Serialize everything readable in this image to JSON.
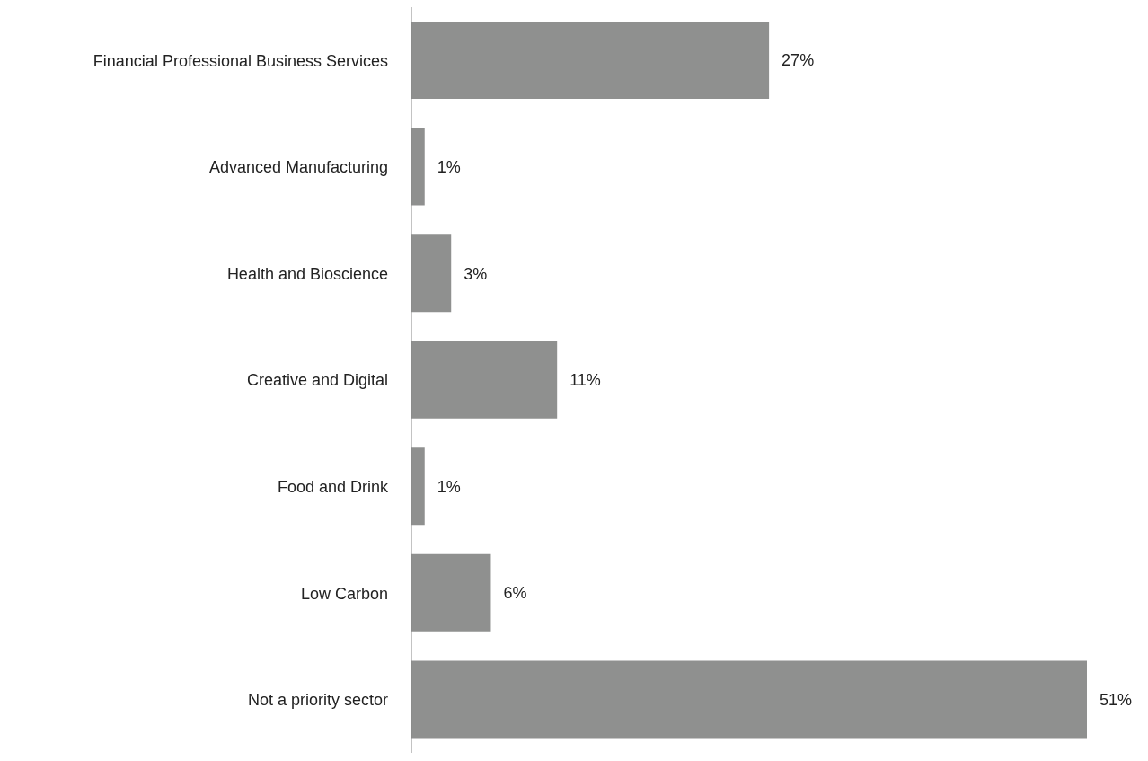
{
  "chart_data": {
    "type": "bar",
    "orientation": "horizontal",
    "categories": [
      "Financial Professional Business Services",
      "Advanced Manufacturing",
      "Health and Bioscience",
      "Creative and Digital",
      "Food and Drink",
      "Low Carbon",
      "Not a priority sector"
    ],
    "values": [
      27,
      1,
      3,
      11,
      1,
      6,
      51
    ],
    "value_labels": [
      "27%",
      "1%",
      "3%",
      "11%",
      "1%",
      "6%",
      "51%"
    ],
    "color": "#8f908f",
    "grid": false,
    "legend": false
  }
}
